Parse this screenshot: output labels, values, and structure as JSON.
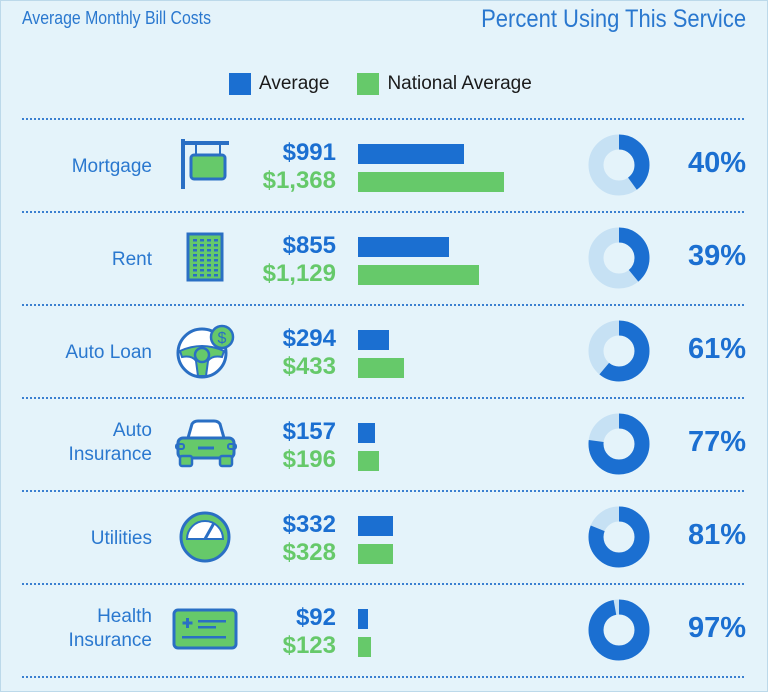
{
  "header": {
    "left_title": "Average Monthly Bill Costs",
    "right_title": "Percent Using This Service"
  },
  "colors": {
    "average": "#1b6fd1",
    "national": "#66c96a",
    "donut_bg": "#c6e1f4"
  },
  "chart_data": {
    "type": "bar",
    "legend": [
      {
        "name": "Average",
        "color": "#1b6fd1"
      },
      {
        "name": "National Average",
        "color": "#66c96a"
      }
    ],
    "categories": [
      "Mortgage",
      "Rent",
      "Auto Loan",
      "Auto Insurance",
      "Utilities",
      "Health Insurance"
    ],
    "series": [
      {
        "name": "Average",
        "values": [
          991,
          855,
          294,
          157,
          332,
          92
        ],
        "labels": [
          "$991",
          "$855",
          "$294",
          "$157",
          "$332",
          "$92"
        ]
      },
      {
        "name": "National Average",
        "values": [
          1368,
          1129,
          433,
          196,
          328,
          123
        ],
        "labels": [
          "$1,368",
          "$1,129",
          "$433",
          "$196",
          "$328",
          "$123"
        ]
      }
    ],
    "percent_using": {
      "type": "pie",
      "values": [
        40,
        39,
        61,
        77,
        81,
        97
      ],
      "labels": [
        "40%",
        "39%",
        "61%",
        "77%",
        "81%",
        "97%"
      ]
    }
  },
  "rows": [
    {
      "label_lines": [
        "Mortgage"
      ],
      "icon": "hanging-sign-icon"
    },
    {
      "label_lines": [
        "Rent"
      ],
      "icon": "building-icon"
    },
    {
      "label_lines": [
        "Auto Loan"
      ],
      "icon": "steering-wheel-dollar-icon"
    },
    {
      "label_lines": [
        "Auto",
        "Insurance"
      ],
      "icon": "car-icon"
    },
    {
      "label_lines": [
        "Utilities"
      ],
      "icon": "gauge-icon"
    },
    {
      "label_lines": [
        "Health",
        "Insurance"
      ],
      "icon": "health-card-icon"
    }
  ]
}
